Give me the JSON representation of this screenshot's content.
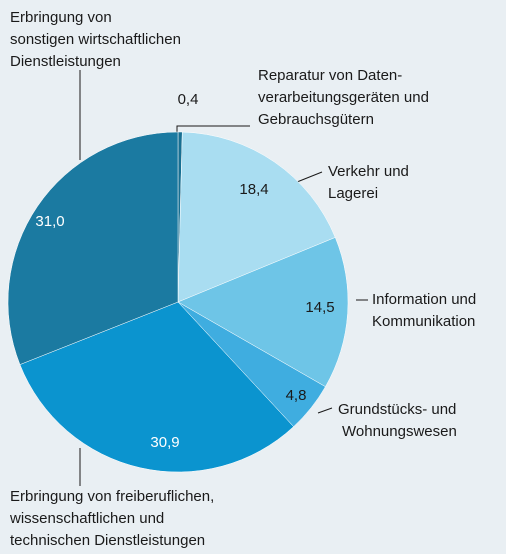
{
  "chart_data": {
    "type": "pie",
    "categories": [
      "Reparatur von Daten-\nverarbeitungsgeräten und\nGebrauchsgütern",
      "Verkehr und\nLagerei",
      "Information und\nKommunikation",
      "Grundstücks- und\nWohnungswesen",
      "Erbringung von freiberuflichen,\nwissenschaftlichen und\ntechnischen Dienstleistungen",
      "Erbringung von\nsonstigen wirtschaftlichen\nDienstleistungen"
    ],
    "values": [
      0.4,
      18.4,
      14.5,
      4.8,
      30.9,
      31.0
    ],
    "value_labels": [
      "0,4",
      "18,4",
      "14,5",
      "4,8",
      "30,9",
      "31,0"
    ],
    "colors": [
      "#176f92",
      "#a9ddf1",
      "#6ec5e7",
      "#3fade0",
      "#0b94cf",
      "#1b7aa1"
    ]
  }
}
